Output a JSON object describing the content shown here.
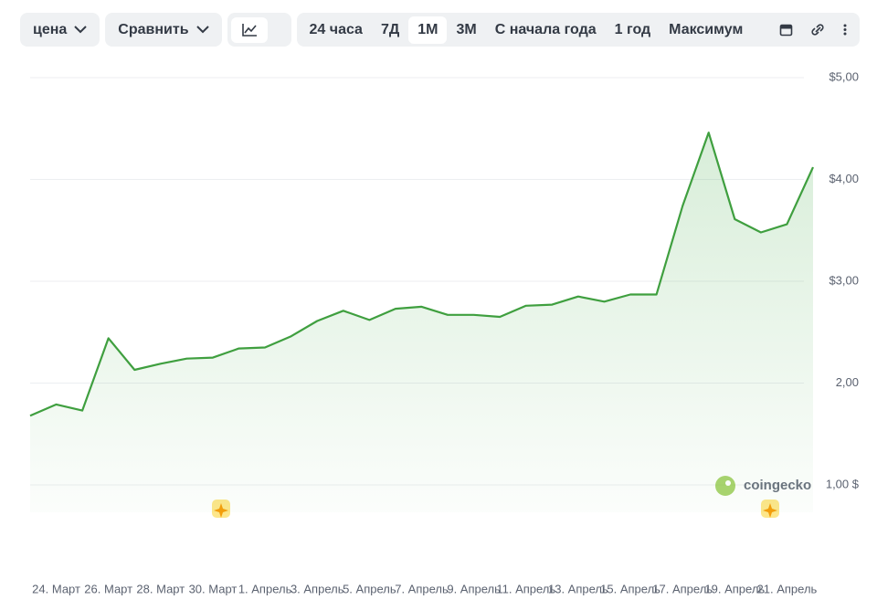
{
  "toolbar": {
    "metric": "цена",
    "compare": "Сравнить",
    "periods": [
      "24 часа",
      "7Д",
      "1М",
      "3М",
      "С начала года",
      "1 год",
      "Максимум"
    ],
    "selected": 2
  },
  "watermark": "coingecko",
  "chart_data": {
    "type": "line",
    "categories": [
      null,
      "24. Март",
      null,
      "26. Март",
      null,
      "28. Март",
      null,
      "30. Март",
      null,
      "1. Апрель",
      null,
      "3. Апрель",
      null,
      "5. Апрель",
      null,
      "7. Апрель",
      null,
      "9. Апрель",
      null,
      "11. Апрель",
      null,
      "13. Апрель",
      null,
      "15. Апрель",
      null,
      "17. Апрель",
      null,
      "19. Апрель",
      null,
      "21. Апрель",
      null
    ],
    "series": [
      {
        "color": "#3f9f3f",
        "values": [
          1.68,
          1.79,
          1.73,
          2.44,
          2.13,
          2.19,
          2.24,
          2.25,
          2.34,
          2.35,
          2.46,
          2.61,
          2.71,
          2.62,
          2.73,
          2.75,
          2.67,
          2.67,
          2.65,
          2.76,
          2.77,
          2.85,
          2.8,
          2.87,
          2.87,
          3.74,
          4.46,
          3.61,
          3.48,
          3.56,
          4.12
        ]
      }
    ],
    "ylim": [
      1,
      5
    ],
    "yticks": [
      {
        "value": 1,
        "label": "1,00 $"
      },
      {
        "value": 2,
        "label": "2,00"
      },
      {
        "value": 3,
        "label": "$3,00"
      },
      {
        "value": 4,
        "label": "$4,00"
      },
      {
        "value": 5,
        "label": "$5,00"
      }
    ],
    "grid": true
  }
}
